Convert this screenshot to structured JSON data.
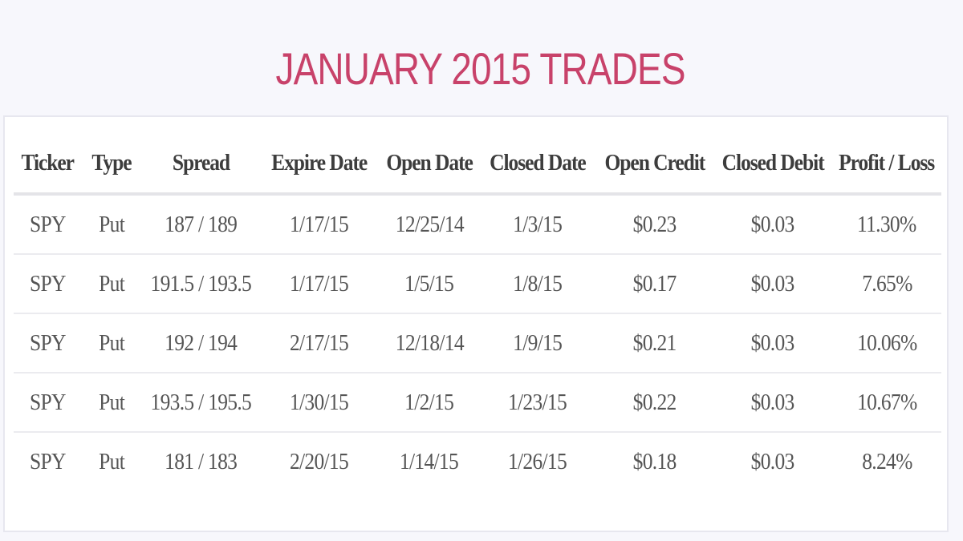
{
  "title": "JANUARY 2015 TRADES",
  "table": {
    "columns": [
      "Ticker",
      "Type",
      "Spread",
      "Expire Date",
      "Open Date",
      "Closed Date",
      "Open Credit",
      "Closed Debit",
      "Profit / Loss"
    ],
    "rows": [
      [
        "SPY",
        "Put",
        "187 / 189",
        "1/17/15",
        "12/25/14",
        "1/3/15",
        "$0.23",
        "$0.03",
        "11.30%"
      ],
      [
        "SPY",
        "Put",
        "191.5 / 193.5",
        "1/17/15",
        "1/5/15",
        "1/8/15",
        "$0.17",
        "$0.03",
        "7.65%"
      ],
      [
        "SPY",
        "Put",
        "192 / 194",
        "2/17/15",
        "12/18/14",
        "1/9/15",
        "$0.21",
        "$0.03",
        "10.06%"
      ],
      [
        "SPY",
        "Put",
        "193.5 / 195.5",
        "1/30/15",
        "1/2/15",
        "1/23/15",
        "$0.22",
        "$0.03",
        "10.67%"
      ],
      [
        "SPY",
        "Put",
        "181 / 183",
        "2/20/15",
        "1/14/15",
        "1/26/15",
        "$0.18",
        "$0.03",
        "8.24%"
      ]
    ]
  },
  "colors": {
    "title": "#c8426a",
    "background": "#f7f7fc",
    "card": "#ffffff",
    "header_text": "#3d3d3d",
    "cell_text": "#555555"
  }
}
